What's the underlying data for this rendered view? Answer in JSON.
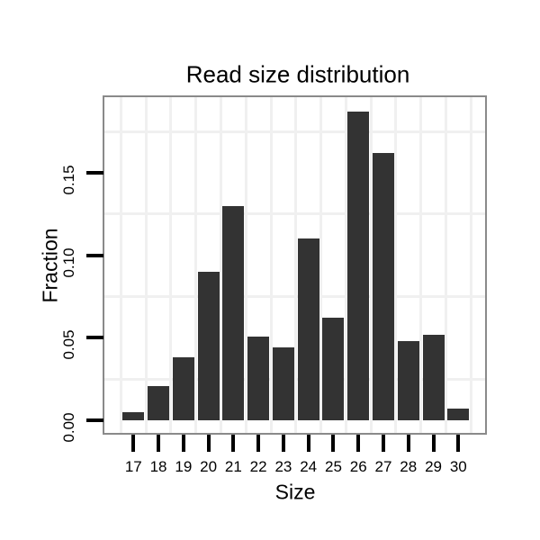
{
  "chart_data": {
    "type": "bar",
    "title": "Read size distribution",
    "xlabel": "Size",
    "ylabel": "Fraction",
    "categories": [
      "17",
      "18",
      "19",
      "20",
      "21",
      "22",
      "23",
      "24",
      "25",
      "26",
      "27",
      "28",
      "29",
      "30"
    ],
    "values": [
      0.005,
      0.021,
      0.038,
      0.09,
      0.13,
      0.051,
      0.044,
      0.11,
      0.062,
      0.187,
      0.162,
      0.048,
      0.052,
      0.007
    ],
    "y_tick_values": [
      0,
      0.05,
      0.1,
      0.15
    ],
    "y_tick_labels": [
      "0.00",
      "0.05",
      "0.10",
      "0.15"
    ],
    "minor_gridline_values": [
      0.025,
      0.075,
      0.125,
      0.175
    ],
    "ylim": [
      -0.008,
      0.196
    ],
    "grid": "minor horizontal lines and vertical lines at category boundaries only; major gridlines white (invisible)",
    "legend": "none",
    "colors": {
      "bar": "#333333",
      "panel_border": "#8a8a8a",
      "panel_background": "#ffffff",
      "gridline": "#f0f0f0",
      "tick": "#000000",
      "text": "#000000",
      "page_background": "#ffffff"
    }
  }
}
